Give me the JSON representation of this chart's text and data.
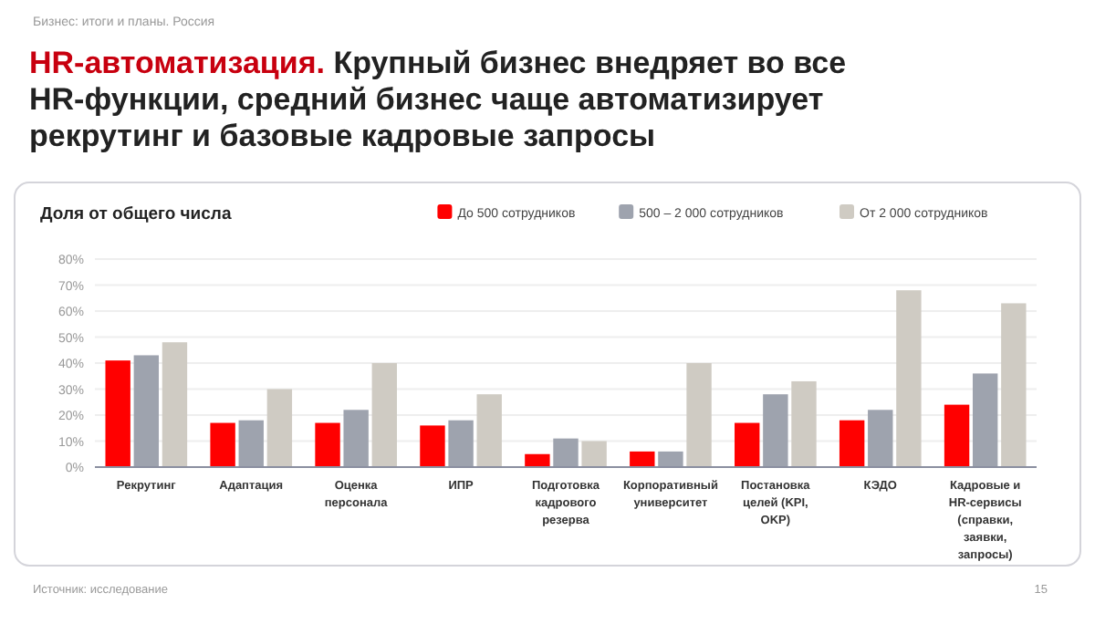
{
  "chart_data": {
    "type": "bar",
    "title": "HR-автоматизация. Крупный бизнес внедряет во все HR-функции, средний бизнес чаще автоматизирует рекрутинг и базовые кадровые запросы",
    "subtitle": "Доля от общего числа",
    "annotations": [
      "Бизнес: итоги и планы. Россия",
      "Источник: исследование",
      "15"
    ],
    "categories": [
      "Рекрутинг",
      "Адаптация",
      "Оценка персонала",
      "ИПР",
      "Подготовка кадрового резерва",
      "Корпоративный университет",
      "Постановка целей (KPI, OKP)",
      "КЭДО",
      "Кадровые и HR-сервисы (справки, заявки, запросы)"
    ],
    "series": [
      {
        "name": "До 500 сотрудников",
        "color": "#ff0000",
        "values": [
          41,
          17,
          17,
          16,
          5,
          6,
          17,
          18,
          24
        ]
      },
      {
        "name": "500 – 2 000 сотрудников",
        "color": "#9ea3ae",
        "values": [
          43,
          18,
          22,
          18,
          11,
          6,
          28,
          22,
          36
        ]
      },
      {
        "name": "От 2 000 сотрудников",
        "color": "#cfcbc3",
        "values": [
          48,
          30,
          40,
          28,
          10,
          40,
          33,
          68,
          63
        ]
      }
    ],
    "ylim": [
      0,
      80
    ],
    "yticks": [
      {
        "value": 0,
        "label": "0%"
      },
      {
        "value": 10,
        "label": "10%"
      },
      {
        "value": 20,
        "label": "20%"
      },
      {
        "value": 30,
        "label": "30%"
      },
      {
        "value": 40,
        "label": "40%"
      },
      {
        "value": 50,
        "label": "50%"
      },
      {
        "value": 60,
        "label": "60%"
      },
      {
        "value": 70,
        "label": "70%"
      },
      {
        "value": 80,
        "label": "80%"
      }
    ],
    "grid": "y",
    "legend": "top right"
  }
}
